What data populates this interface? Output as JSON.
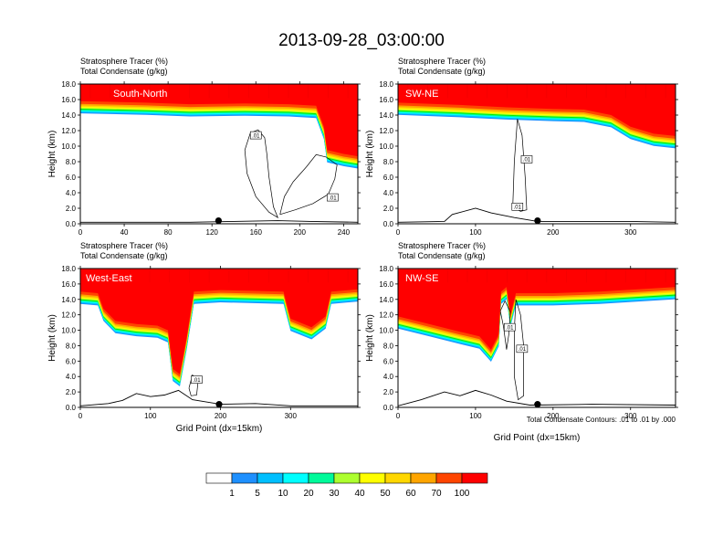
{
  "chart_data": {
    "type": "heatmap",
    "title": "2013-09-28_03:00:00",
    "contour_note": "Total Condensate Contours: .01 to .01 by .000",
    "panel_labels": {
      "line1_name": "Stratosphere Tracer",
      "line1_unit": "(%)",
      "line2_name": "Total Condensate",
      "line2_unit": "(g/kg)"
    },
    "ylabel": "Height (km)",
    "xlabel": "Grid Point (dx=15km)",
    "yticks": [
      "0.0",
      "2.0",
      "4.0",
      "6.0",
      "8.0",
      "10.0",
      "12.0",
      "14.0",
      "16.0",
      "18.0"
    ],
    "ylim": [
      0,
      18
    ],
    "colorbar": {
      "labels": [
        "1",
        "5",
        "10",
        "20",
        "30",
        "40",
        "50",
        "60",
        "70",
        "100"
      ],
      "colors": [
        "#ffffff",
        "#1e90ff",
        "#00bfff",
        "#00ffff",
        "#00fa9a",
        "#00ee00",
        "#adff2f",
        "#ffff00",
        "#ffd700",
        "#ffa500",
        "#ff4500",
        "#ff0000"
      ]
    },
    "panels": [
      {
        "name": "South-North",
        "xlim": [
          0,
          253
        ],
        "xticks": [
          "0",
          "40",
          "80",
          "120",
          "160",
          "200",
          "240"
        ],
        "xtick_values": [
          0,
          40,
          80,
          120,
          160,
          200,
          240
        ],
        "show_xlabel": false,
        "marker_x": 126,
        "tropopause": [
          [
            0,
            15.8
          ],
          [
            60,
            15.6
          ],
          [
            100,
            15.4
          ],
          [
            150,
            15.5
          ],
          [
            190,
            15.4
          ],
          [
            215,
            15.2
          ],
          [
            222,
            12.5
          ],
          [
            225,
            9.5
          ],
          [
            240,
            9.0
          ],
          [
            253,
            8.7
          ]
        ],
        "terrain": [
          [
            0,
            0.2
          ],
          [
            100,
            0.2
          ],
          [
            140,
            0.3
          ],
          [
            180,
            0.4
          ],
          [
            210,
            0.3
          ],
          [
            253,
            0.2
          ]
        ],
        "contours": [
          [
            [
              155,
              11.7
            ],
            [
              162,
              12.1
            ],
            [
              168,
              11.1
            ],
            [
              170,
              9.0
            ],
            [
              172,
              6.0
            ],
            [
              176,
              2.2
            ],
            [
              180,
              0.8
            ],
            [
              172,
              1.5
            ],
            [
              160,
              3.5
            ],
            [
              152,
              6.5
            ],
            [
              150,
              9.5
            ],
            [
              155,
              11.7
            ]
          ],
          [
            [
              182,
              1.2
            ],
            [
              186,
              3.5
            ],
            [
              194,
              5.4
            ],
            [
              206,
              7.3
            ],
            [
              215,
              8.9
            ],
            [
              224,
              8.6
            ],
            [
              234,
              7.6
            ],
            [
              232,
              5.8
            ],
            [
              226,
              3.8
            ],
            [
              212,
              2.6
            ],
            [
              196,
              1.8
            ],
            [
              182,
              1.2
            ]
          ]
        ],
        "contour_labels": [
          {
            "text": ".01",
            "x": 160,
            "y": 11.4
          },
          {
            "text": ".01",
            "x": 230,
            "y": 3.4
          }
        ]
      },
      {
        "name": "SW-NE",
        "xlim": [
          0,
          358
        ],
        "xticks": [
          "0",
          "100",
          "200",
          "300"
        ],
        "xtick_values": [
          0,
          100,
          200,
          300
        ],
        "show_xlabel": false,
        "marker_x": 180,
        "tropopause": [
          [
            0,
            15.6
          ],
          [
            80,
            15.3
          ],
          [
            140,
            15.0
          ],
          [
            200,
            14.8
          ],
          [
            240,
            14.7
          ],
          [
            275,
            14.0
          ],
          [
            300,
            12.5
          ],
          [
            330,
            11.6
          ],
          [
            358,
            11.3
          ]
        ],
        "terrain": [
          [
            0,
            0.2
          ],
          [
            60,
            0.3
          ],
          [
            70,
            1.2
          ],
          [
            100,
            2.0
          ],
          [
            120,
            1.4
          ],
          [
            150,
            0.8
          ],
          [
            180,
            0.3
          ],
          [
            250,
            0.3
          ],
          [
            300,
            0.3
          ],
          [
            358,
            0.2
          ]
        ],
        "contours": [
          [
            [
              148,
              2.2
            ],
            [
              150,
              8.0
            ],
            [
              154,
              13.5
            ],
            [
              160,
              11.4
            ],
            [
              164,
              6.0
            ],
            [
              166,
              1.8
            ],
            [
              158,
              1.6
            ],
            [
              148,
              2.2
            ]
          ]
        ],
        "contour_labels": [
          {
            "text": ".01",
            "x": 166,
            "y": 8.3
          },
          {
            "text": ".01",
            "x": 154,
            "y": 2.2
          }
        ]
      },
      {
        "name": "West-East",
        "xlim": [
          0,
          396
        ],
        "xticks": [
          "0",
          "100",
          "200",
          "300"
        ],
        "xtick_values": [
          0,
          100,
          200,
          300
        ],
        "show_xlabel": true,
        "marker_x": 198,
        "tropopause": [
          [
            0,
            15.0
          ],
          [
            25,
            14.8
          ],
          [
            33,
            12.8
          ],
          [
            50,
            11.2
          ],
          [
            80,
            10.8
          ],
          [
            110,
            10.6
          ],
          [
            125,
            10.0
          ],
          [
            132,
            5.0
          ],
          [
            142,
            4.3
          ],
          [
            152,
            9.2
          ],
          [
            162,
            15.0
          ],
          [
            200,
            15.2
          ],
          [
            290,
            15.0
          ],
          [
            300,
            11.5
          ],
          [
            330,
            10.4
          ],
          [
            350,
            11.8
          ],
          [
            358,
            15.0
          ],
          [
            396,
            15.3
          ]
        ],
        "terrain": [
          [
            0,
            0.2
          ],
          [
            40,
            0.5
          ],
          [
            60,
            0.9
          ],
          [
            80,
            1.8
          ],
          [
            100,
            1.4
          ],
          [
            120,
            1.6
          ],
          [
            140,
            2.2
          ],
          [
            160,
            1.0
          ],
          [
            200,
            0.4
          ],
          [
            250,
            0.5
          ],
          [
            300,
            0.2
          ],
          [
            396,
            0.2
          ]
        ],
        "contours": [
          [
            [
              155,
              2.5
            ],
            [
              160,
              4.2
            ],
            [
              168,
              3.4
            ],
            [
              166,
              1.6
            ],
            [
              158,
              1.5
            ],
            [
              155,
              2.5
            ]
          ]
        ],
        "contour_labels": [
          {
            "text": ".01",
            "x": 166,
            "y": 3.6
          }
        ]
      },
      {
        "name": "NW-SE",
        "xlim": [
          0,
          358
        ],
        "xticks": [
          "0",
          "100",
          "200",
          "300"
        ],
        "xtick_values": [
          0,
          100,
          200,
          300
        ],
        "show_xlabel": true,
        "marker_x": 180,
        "tropopause": [
          [
            0,
            11.8
          ],
          [
            40,
            10.8
          ],
          [
            80,
            9.8
          ],
          [
            105,
            9.2
          ],
          [
            120,
            7.5
          ],
          [
            130,
            9.5
          ],
          [
            133,
            15.0
          ],
          [
            140,
            15.6
          ],
          [
            145,
            12.0
          ],
          [
            152,
            14.8
          ],
          [
            200,
            14.8
          ],
          [
            260,
            15.0
          ],
          [
            358,
            15.6
          ]
        ],
        "terrain": [
          [
            0,
            0.2
          ],
          [
            30,
            1.0
          ],
          [
            60,
            2.0
          ],
          [
            80,
            1.5
          ],
          [
            100,
            2.2
          ],
          [
            120,
            1.6
          ],
          [
            140,
            0.8
          ],
          [
            170,
            0.3
          ],
          [
            250,
            0.4
          ],
          [
            358,
            0.3
          ]
        ],
        "contours": [
          [
            [
              132,
              12.5
            ],
            [
              138,
              13.8
            ],
            [
              145,
              12.4
            ],
            [
              143,
              9.5
            ],
            [
              140,
              7.5
            ],
            [
              136,
              10.5
            ],
            [
              132,
              12.5
            ]
          ],
          [
            [
              152,
              14.0
            ],
            [
              158,
              12.0
            ],
            [
              162,
              8.0
            ],
            [
              162,
              1.5
            ],
            [
              155,
              1.0
            ],
            [
              150,
              4.0
            ],
            [
              150,
              10.0
            ],
            [
              152,
              14.0
            ]
          ]
        ],
        "contour_labels": [
          {
            "text": ".01",
            "x": 144,
            "y": 10.4
          },
          {
            "text": ".01",
            "x": 160,
            "y": 7.6
          }
        ]
      }
    ]
  }
}
